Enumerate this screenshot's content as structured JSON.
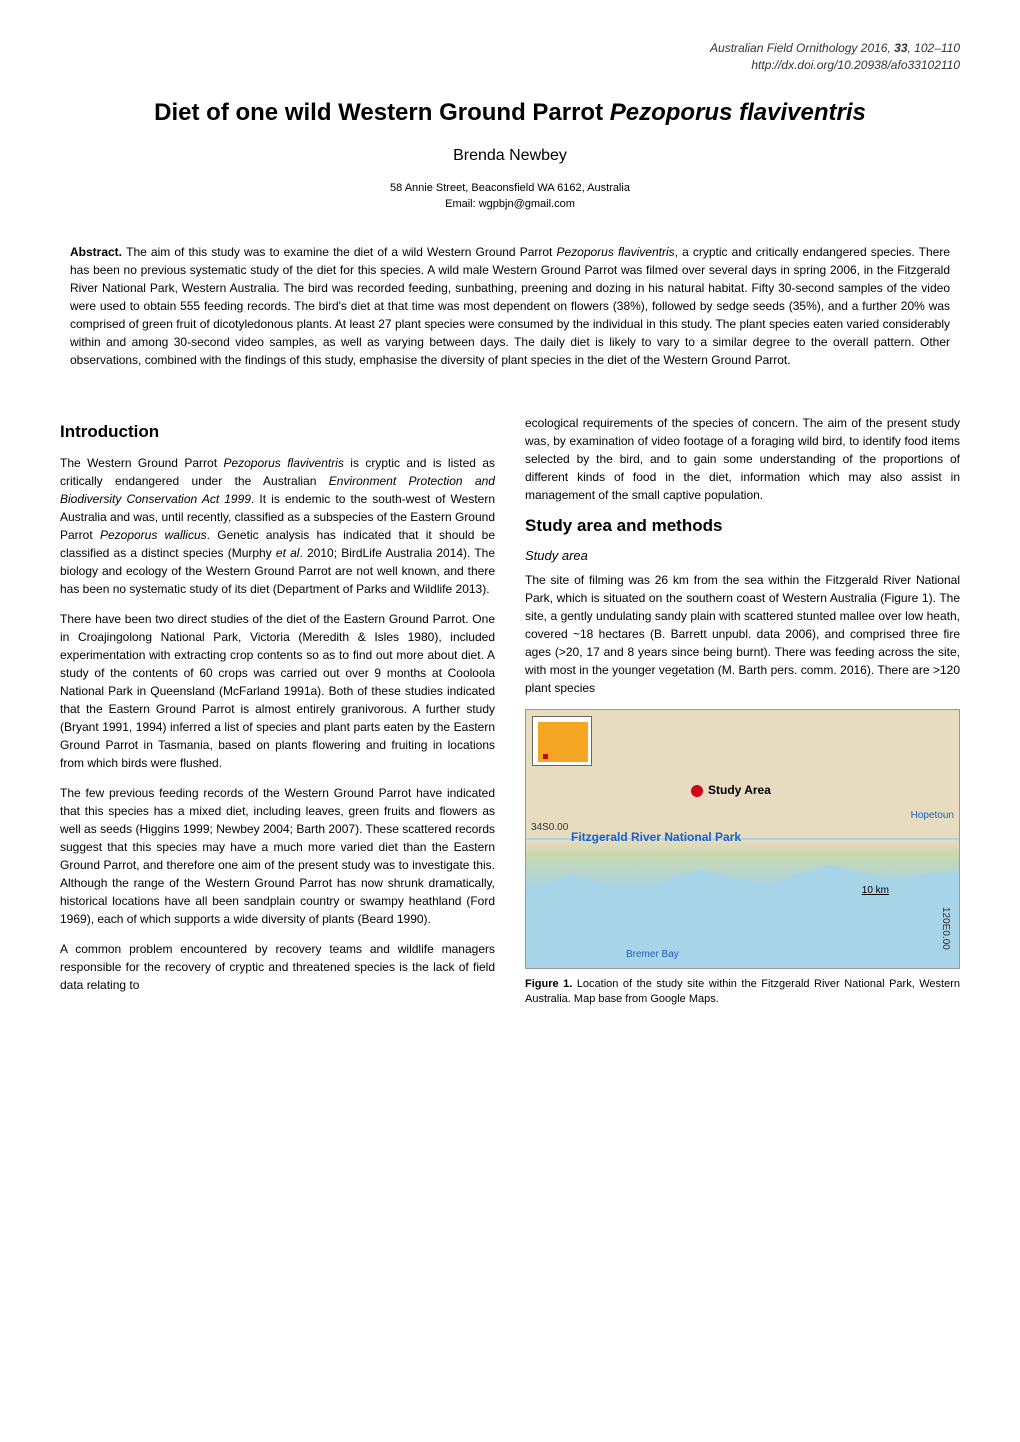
{
  "header": {
    "journal": "Australian Field Ornithology",
    "year": "2016",
    "volume": "33",
    "pages": "102–110",
    "doi": "http://dx.doi.org/10.20938/afo33102110"
  },
  "title": {
    "main": "Diet of one wild Western Ground Parrot ",
    "species": "Pezoporus flaviventris"
  },
  "author": "Brenda Newbey",
  "affiliation": {
    "address": "58 Annie Street, Beaconsfield WA 6162, Australia",
    "email": "Email: wgpbjn@gmail.com"
  },
  "abstract": {
    "label": "Abstract. ",
    "text_pre": "The aim of this study was to examine the diet of a wild Western Ground Parrot ",
    "species": "Pezoporus flaviventris",
    "text_post": ", a cryptic and critically endangered species. There has been no previous systematic study of the diet for this species. A wild male Western Ground Parrot was filmed over several days in spring 2006, in the Fitzgerald River National Park, Western Australia. The bird was recorded feeding, sunbathing, preening and dozing in his natural habitat. Fifty 30-second samples of the video were used to obtain 555 feeding records. The bird's diet at that time was most dependent on flowers (38%), followed by sedge seeds (35%), and a further 20% was comprised of green fruit of dicotyledonous plants. At least 27 plant species were consumed by the individual in this study. The plant species eaten varied considerably within and among 30-second video samples, as well as varying between days. The daily diet is likely to vary to a similar degree to the overall pattern. Other observations, combined with the findings of this study, emphasise the diversity of plant species in the diet of the Western Ground Parrot."
  },
  "left_col": {
    "intro_heading": "Introduction",
    "p1_a": "The Western Ground Parrot ",
    "p1_sp1": "Pezoporus flaviventris",
    "p1_b": " is cryptic and is listed as critically endangered under the Australian ",
    "p1_act": "Environment Protection and Biodiversity Conservation Act 1999",
    "p1_c": ". It is endemic to the south-west of Western Australia and was, until recently, classified as a subspecies of the Eastern Ground Parrot ",
    "p1_sp2": "Pezoporus wallicus",
    "p1_d": ". Genetic analysis has indicated that it should be classified as a distinct species (Murphy ",
    "p1_etal": "et al",
    "p1_e": ". 2010; BirdLife Australia 2014). The biology and ecology of the Western Ground Parrot are not well known, and there has been no systematic study of its diet (Department of Parks and Wildlife 2013).",
    "p2": "There have been two direct studies of the diet of the Eastern Ground Parrot. One in Croajingolong National Park, Victoria (Meredith & Isles 1980), included experimentation with extracting crop contents so as to find out more about diet. A study of the contents of 60 crops was carried out over 9 months at Cooloola National Park in Queensland (McFarland 1991a). Both of these studies indicated that the Eastern Ground Parrot is almost entirely granivorous. A further study (Bryant 1991, 1994) inferred a list of species and plant parts eaten by the Eastern Ground Parrot in Tasmania, based on plants flowering and fruiting in locations from which birds were flushed.",
    "p3": "The few previous feeding records of the Western Ground Parrot have indicated that this species has a mixed diet, including leaves, green fruits and flowers as well as seeds (Higgins 1999; Newbey 2004; Barth 2007). These scattered records suggest that this species may have a much more varied diet than the Eastern Ground Parrot, and therefore one aim of the present study was to investigate this. Although the range of the Western Ground Parrot has now shrunk dramatically, historical locations have all been sandplain country or swampy heathland (Ford 1969), each of which supports a wide diversity of plants (Beard 1990).",
    "p4": "A common problem encountered by recovery teams and wildlife managers responsible for the recovery of cryptic and threatened species is the lack of field data relating to"
  },
  "right_col": {
    "p1": "ecological requirements of the species of concern. The aim of the present study was, by examination of video footage of a foraging wild bird, to identify food items selected by the bird, and to gain some understanding of the proportions of different kinds of food in the diet, information which may also assist in management of the small captive population.",
    "methods_heading": "Study area and methods",
    "sub1": "Study area",
    "p2": "The site of filming was 26 km from the sea within the Fitzgerald River National Park, which is situated on the southern coast of Western Australia (Figure 1). The site, a gently undulating sandy plain with scattered stunted mallee over low heath, covered ~18 hectares (B. Barrett unpubl. data 2006), and comprised three fire ages (>20, 17 and 8 years since being burnt). There was feeding across the site, with most in the younger vegetation (M. Barth pers. comm. 2016). There are >120 plant species"
  },
  "map": {
    "study_area": "Study Area",
    "park": "Fitzgerald River National Park",
    "hopetoun": "Hopetoun",
    "bremer": "Bremer Bay",
    "lat": "34S0.00",
    "lon": "120E0.00",
    "scale": "10 km",
    "colors": {
      "land": "#e8dcc0",
      "sea": "#a8d4e8",
      "marker": "#d0021b",
      "inset_fill": "#f5a623",
      "label_blue": "#2060c0"
    }
  },
  "figure1": {
    "label": "Figure 1. ",
    "text": "Location of the study site within the Fitzgerald River National Park, Western Australia. Map base from Google Maps."
  }
}
